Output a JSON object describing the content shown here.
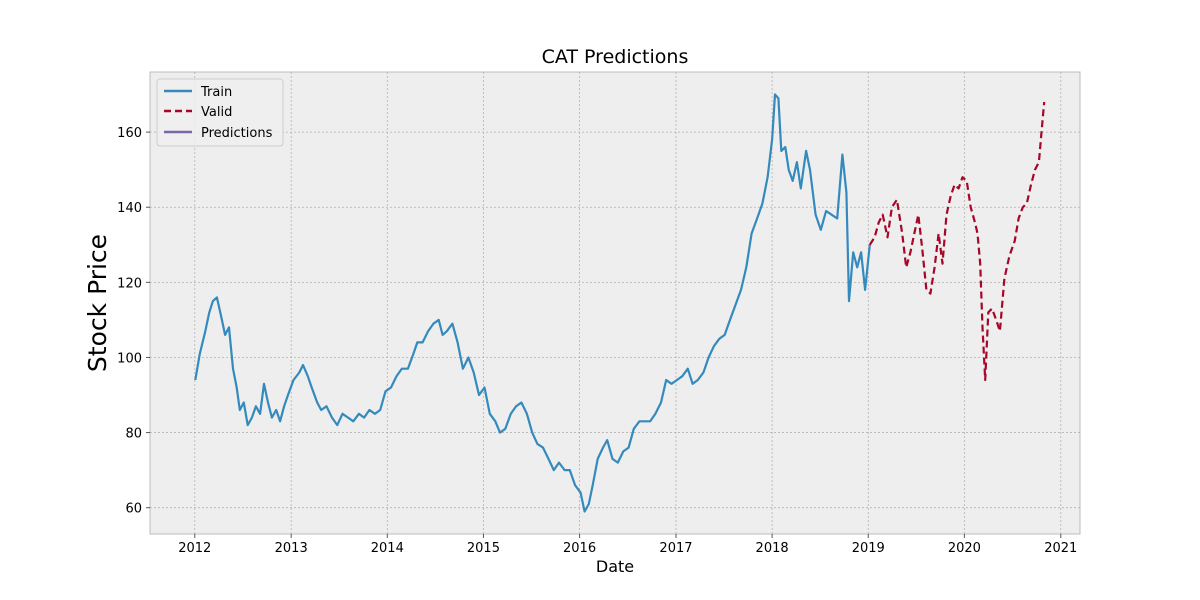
{
  "chart_data": {
    "type": "line",
    "title": "CAT Predictions",
    "xlabel": "Date",
    "ylabel": "Stock Price",
    "xlim": [
      "2011-07-15",
      "2021-03-15"
    ],
    "ylim": [
      53,
      176
    ],
    "x_ticks": [
      "2012-01-01",
      "2013-01-01",
      "2014-01-01",
      "2015-01-01",
      "2016-01-01",
      "2017-01-01",
      "2018-01-01",
      "2019-01-01",
      "2020-01-01",
      "2021-01-01"
    ],
    "x_tick_labels": [
      "2012",
      "2013",
      "2014",
      "2015",
      "2016",
      "2017",
      "2018",
      "2019",
      "2020",
      "2021"
    ],
    "y_ticks": [
      60,
      80,
      100,
      120,
      140,
      160
    ],
    "y_tick_labels": [
      "60",
      "80",
      "100",
      "120",
      "140",
      "160"
    ],
    "grid": true,
    "legend_position": "top-left",
    "series": [
      {
        "name": "Train",
        "color": "#348abd",
        "style": "solid",
        "points": [
          [
            "2012-01-03",
            94
          ],
          [
            "2012-01-20",
            101
          ],
          [
            "2012-02-10",
            107
          ],
          [
            "2012-02-25",
            112
          ],
          [
            "2012-03-10",
            115
          ],
          [
            "2012-03-25",
            116
          ],
          [
            "2012-04-10",
            111
          ],
          [
            "2012-04-25",
            106
          ],
          [
            "2012-05-10",
            108
          ],
          [
            "2012-05-25",
            97
          ],
          [
            "2012-06-08",
            92
          ],
          [
            "2012-06-20",
            86
          ],
          [
            "2012-07-05",
            88
          ],
          [
            "2012-07-20",
            82
          ],
          [
            "2012-08-05",
            84
          ],
          [
            "2012-08-20",
            87
          ],
          [
            "2012-09-05",
            85
          ],
          [
            "2012-09-20",
            93
          ],
          [
            "2012-10-05",
            88
          ],
          [
            "2012-10-20",
            84
          ],
          [
            "2012-11-05",
            86
          ],
          [
            "2012-11-20",
            83
          ],
          [
            "2012-12-05",
            87
          ],
          [
            "2012-12-20",
            90
          ],
          [
            "2013-01-10",
            94
          ],
          [
            "2013-02-01",
            96
          ],
          [
            "2013-02-15",
            98
          ],
          [
            "2013-03-05",
            95
          ],
          [
            "2013-03-20",
            92
          ],
          [
            "2013-04-10",
            88
          ],
          [
            "2013-04-25",
            86
          ],
          [
            "2013-05-15",
            87
          ],
          [
            "2013-06-05",
            84
          ],
          [
            "2013-06-25",
            82
          ],
          [
            "2013-07-15",
            85
          ],
          [
            "2013-08-05",
            84
          ],
          [
            "2013-08-25",
            83
          ],
          [
            "2013-09-15",
            85
          ],
          [
            "2013-10-05",
            84
          ],
          [
            "2013-10-25",
            86
          ],
          [
            "2013-11-15",
            85
          ],
          [
            "2013-12-05",
            86
          ],
          [
            "2013-12-25",
            91
          ],
          [
            "2014-01-15",
            92
          ],
          [
            "2014-02-05",
            95
          ],
          [
            "2014-02-25",
            97
          ],
          [
            "2014-03-20",
            97
          ],
          [
            "2014-04-10",
            101
          ],
          [
            "2014-04-25",
            104
          ],
          [
            "2014-05-15",
            104
          ],
          [
            "2014-06-05",
            107
          ],
          [
            "2014-06-25",
            109
          ],
          [
            "2014-07-15",
            110
          ],
          [
            "2014-07-30",
            106
          ],
          [
            "2014-08-15",
            107
          ],
          [
            "2014-09-05",
            109
          ],
          [
            "2014-09-25",
            104
          ],
          [
            "2014-10-15",
            97
          ],
          [
            "2014-11-05",
            100
          ],
          [
            "2014-11-25",
            96
          ],
          [
            "2014-12-15",
            90
          ],
          [
            "2015-01-05",
            92
          ],
          [
            "2015-01-25",
            85
          ],
          [
            "2015-02-15",
            83
          ],
          [
            "2015-03-05",
            80
          ],
          [
            "2015-03-25",
            81
          ],
          [
            "2015-04-15",
            85
          ],
          [
            "2015-05-05",
            87
          ],
          [
            "2015-05-25",
            88
          ],
          [
            "2015-06-15",
            85
          ],
          [
            "2015-07-05",
            80
          ],
          [
            "2015-07-25",
            77
          ],
          [
            "2015-08-15",
            76
          ],
          [
            "2015-09-05",
            73
          ],
          [
            "2015-09-25",
            70
          ],
          [
            "2015-10-15",
            72
          ],
          [
            "2015-11-05",
            70
          ],
          [
            "2015-11-25",
            70
          ],
          [
            "2015-12-15",
            66
          ],
          [
            "2016-01-05",
            64
          ],
          [
            "2016-01-20",
            59
          ],
          [
            "2016-02-05",
            61
          ],
          [
            "2016-02-20",
            66
          ],
          [
            "2016-03-10",
            73
          ],
          [
            "2016-03-30",
            76
          ],
          [
            "2016-04-15",
            78
          ],
          [
            "2016-05-05",
            73
          ],
          [
            "2016-05-25",
            72
          ],
          [
            "2016-06-15",
            75
          ],
          [
            "2016-07-05",
            76
          ],
          [
            "2016-07-25",
            81
          ],
          [
            "2016-08-15",
            83
          ],
          [
            "2016-09-05",
            83
          ],
          [
            "2016-09-25",
            83
          ],
          [
            "2016-10-15",
            85
          ],
          [
            "2016-11-05",
            88
          ],
          [
            "2016-11-25",
            94
          ],
          [
            "2016-12-15",
            93
          ],
          [
            "2017-01-05",
            94
          ],
          [
            "2017-01-25",
            95
          ],
          [
            "2017-02-15",
            97
          ],
          [
            "2017-03-05",
            93
          ],
          [
            "2017-03-25",
            94
          ],
          [
            "2017-04-15",
            96
          ],
          [
            "2017-05-05",
            100
          ],
          [
            "2017-05-25",
            103
          ],
          [
            "2017-06-15",
            105
          ],
          [
            "2017-07-05",
            106
          ],
          [
            "2017-07-25",
            110
          ],
          [
            "2017-08-15",
            114
          ],
          [
            "2017-09-05",
            118
          ],
          [
            "2017-09-25",
            124
          ],
          [
            "2017-10-15",
            133
          ],
          [
            "2017-11-05",
            137
          ],
          [
            "2017-11-25",
            141
          ],
          [
            "2017-12-15",
            148
          ],
          [
            "2018-01-01",
            158
          ],
          [
            "2018-01-12",
            170
          ],
          [
            "2018-01-25",
            169
          ],
          [
            "2018-02-05",
            155
          ],
          [
            "2018-02-20",
            156
          ],
          [
            "2018-03-05",
            150
          ],
          [
            "2018-03-20",
            147
          ],
          [
            "2018-04-05",
            152
          ],
          [
            "2018-04-20",
            145
          ],
          [
            "2018-05-10",
            155
          ],
          [
            "2018-05-25",
            150
          ],
          [
            "2018-06-15",
            138
          ],
          [
            "2018-07-05",
            134
          ],
          [
            "2018-07-25",
            139
          ],
          [
            "2018-08-15",
            138
          ],
          [
            "2018-09-05",
            137
          ],
          [
            "2018-09-25",
            154
          ],
          [
            "2018-10-10",
            144
          ],
          [
            "2018-10-20",
            115
          ],
          [
            "2018-11-05",
            128
          ],
          [
            "2018-11-20",
            124
          ],
          [
            "2018-12-05",
            128
          ],
          [
            "2018-12-20",
            118
          ],
          [
            "2019-01-07",
            130
          ]
        ]
      },
      {
        "name": "Valid",
        "color": "#a60628",
        "style": "dashed",
        "points": [
          [
            "2019-01-07",
            130
          ],
          [
            "2019-01-25",
            132
          ],
          [
            "2019-02-10",
            136
          ],
          [
            "2019-02-25",
            138
          ],
          [
            "2019-03-15",
            132
          ],
          [
            "2019-04-01",
            140
          ],
          [
            "2019-04-20",
            142
          ],
          [
            "2019-05-10",
            133
          ],
          [
            "2019-05-25",
            124
          ],
          [
            "2019-06-10",
            128
          ],
          [
            "2019-06-25",
            133
          ],
          [
            "2019-07-10",
            138
          ],
          [
            "2019-07-25",
            129
          ],
          [
            "2019-08-10",
            118
          ],
          [
            "2019-08-25",
            117
          ],
          [
            "2019-09-10",
            124
          ],
          [
            "2019-09-25",
            133
          ],
          [
            "2019-10-10",
            125
          ],
          [
            "2019-10-25",
            138
          ],
          [
            "2019-11-10",
            143
          ],
          [
            "2019-11-25",
            146
          ],
          [
            "2019-12-10",
            145
          ],
          [
            "2019-12-25",
            148
          ],
          [
            "2020-01-10",
            147
          ],
          [
            "2020-01-25",
            140
          ],
          [
            "2020-02-10",
            136
          ],
          [
            "2020-02-20",
            133
          ],
          [
            "2020-03-01",
            125
          ],
          [
            "2020-03-10",
            108
          ],
          [
            "2020-03-20",
            94
          ],
          [
            "2020-04-01",
            112
          ],
          [
            "2020-04-15",
            113
          ],
          [
            "2020-05-01",
            110
          ],
          [
            "2020-05-15",
            107
          ],
          [
            "2020-06-01",
            121
          ],
          [
            "2020-06-20",
            127
          ],
          [
            "2020-07-10",
            131
          ],
          [
            "2020-07-25",
            137
          ],
          [
            "2020-08-10",
            140
          ],
          [
            "2020-08-25",
            141
          ],
          [
            "2020-09-10",
            146
          ],
          [
            "2020-09-25",
            150
          ],
          [
            "2020-10-10",
            152
          ],
          [
            "2020-10-20",
            160
          ],
          [
            "2020-10-30",
            168
          ]
        ]
      },
      {
        "name": "Predictions",
        "color": "#7a68a6",
        "style": "solid",
        "points": []
      }
    ]
  }
}
